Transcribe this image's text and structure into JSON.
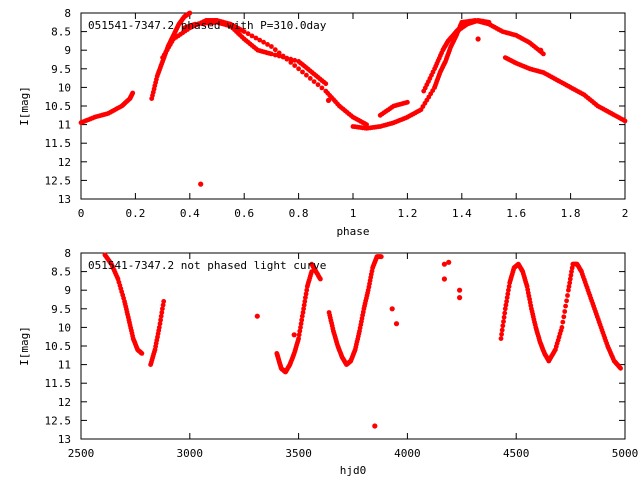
{
  "chart_data": [
    {
      "type": "scatter",
      "title": "051541-7347.2 phased with P=310.0day",
      "xlabel": "phase",
      "ylabel": "I[mag]",
      "xlim": [
        0,
        2
      ],
      "ylim": [
        13,
        8
      ],
      "y_inverted": true,
      "grid": false,
      "color": "#ff0000",
      "x_ticks": [
        "0",
        "0.2",
        "0.4",
        "0.6",
        "0.8",
        "1",
        "1.2",
        "1.4",
        "1.6",
        "1.8",
        "2"
      ],
      "y_ticks": [
        "8",
        "8.5",
        "9",
        "9.5",
        "10",
        "10.5",
        "11",
        "11.5",
        "12",
        "12.5",
        "13"
      ],
      "x_tick_values": [
        0,
        0.2,
        0.4,
        0.6,
        0.8,
        1,
        1.2,
        1.4,
        1.6,
        1.8,
        2
      ],
      "y_tick_values": [
        8,
        8.5,
        9,
        9.5,
        10,
        10.5,
        11,
        11.5,
        12,
        12.5,
        13
      ],
      "curves": [
        {
          "x": [
            0.0,
            0.05,
            0.1,
            0.15,
            0.18,
            0.19
          ],
          "y": [
            10.95,
            10.8,
            10.7,
            10.5,
            10.3,
            10.15
          ]
        },
        {
          "x": [
            0.26,
            0.28,
            0.3,
            0.32,
            0.34,
            0.36,
            0.38,
            0.4
          ],
          "y": [
            10.3,
            9.7,
            9.3,
            8.9,
            8.6,
            8.3,
            8.1,
            8.0
          ]
        },
        {
          "x": [
            0.3,
            0.34,
            0.4,
            0.46,
            0.5,
            0.55,
            0.6,
            0.7,
            0.8,
            0.9,
            0.95,
            1.0,
            1.05
          ],
          "y": [
            9.2,
            8.7,
            8.4,
            8.2,
            8.2,
            8.3,
            8.5,
            8.9,
            9.5,
            10.1,
            10.5,
            10.8,
            11.0
          ]
        },
        {
          "x": [
            0.38,
            0.42,
            0.5,
            0.55,
            0.6,
            0.65,
            0.7,
            0.8,
            0.85,
            0.9
          ],
          "y": [
            8.4,
            8.3,
            8.25,
            8.35,
            8.7,
            9.0,
            9.1,
            9.3,
            9.6,
            9.9
          ]
        },
        {
          "x": [
            1.0,
            1.05,
            1.1,
            1.15,
            1.2,
            1.25,
            1.3
          ],
          "y": [
            11.05,
            11.1,
            11.05,
            10.95,
            10.8,
            10.6,
            10.0
          ]
        },
        {
          "x": [
            1.1,
            1.15,
            1.2
          ],
          "y": [
            10.75,
            10.5,
            10.4
          ]
        },
        {
          "x": [
            1.26,
            1.3,
            1.33,
            1.35,
            1.38,
            1.4
          ],
          "y": [
            10.1,
            9.5,
            9.0,
            8.75,
            8.5,
            8.35
          ]
        },
        {
          "x": [
            1.3,
            1.32,
            1.34,
            1.36,
            1.38,
            1.4,
            1.45,
            1.5,
            1.55,
            1.6,
            1.65,
            1.7
          ],
          "y": [
            10.0,
            9.6,
            9.3,
            8.9,
            8.6,
            8.25,
            8.2,
            8.3,
            8.5,
            8.6,
            8.8,
            9.1
          ]
        },
        {
          "x": [
            1.38,
            1.42,
            1.46,
            1.5
          ],
          "y": [
            8.5,
            8.3,
            8.2,
            8.25
          ]
        },
        {
          "x": [
            1.56,
            1.6,
            1.65,
            1.7,
            1.75,
            1.8,
            1.85,
            1.9,
            1.95,
            2.0
          ],
          "y": [
            9.2,
            9.35,
            9.5,
            9.6,
            9.8,
            10.0,
            10.2,
            10.5,
            10.7,
            10.9
          ]
        }
      ],
      "isolated_points": [
        {
          "x": 0.44,
          "y": 12.6
        },
        {
          "x": 1.46,
          "y": 8.7
        },
        {
          "x": 1.69,
          "y": 9.0
        },
        {
          "x": 0.91,
          "y": 10.35
        }
      ]
    },
    {
      "type": "scatter",
      "title": "051541-7347.2 not phased light curve",
      "xlabel": "hjd0",
      "ylabel": "I[mag]",
      "xlim": [
        2500,
        5000
      ],
      "ylim": [
        13,
        8
      ],
      "y_inverted": true,
      "grid": false,
      "color": "#ff0000",
      "x_ticks": [
        "2500",
        "3000",
        "3500",
        "4000",
        "4500",
        "5000"
      ],
      "y_ticks": [
        "8",
        "8.5",
        "9",
        "9.5",
        "10",
        "10.5",
        "11",
        "11.5",
        "12",
        "12.5",
        "13"
      ],
      "x_tick_values": [
        2500,
        3000,
        3500,
        4000,
        4500,
        5000
      ],
      "y_tick_values": [
        8,
        8.5,
        9,
        9.5,
        10,
        10.5,
        11,
        11.5,
        12,
        12.5,
        13
      ],
      "curves": [
        {
          "x": [
            2610,
            2640,
            2670,
            2700,
            2720,
            2740,
            2760,
            2780
          ],
          "y": [
            8.05,
            8.3,
            8.7,
            9.3,
            9.8,
            10.3,
            10.6,
            10.7
          ]
        },
        {
          "x": [
            2820,
            2840,
            2860,
            2880
          ],
          "y": [
            11.0,
            10.6,
            10.0,
            9.3
          ]
        },
        {
          "x": [
            3400,
            3410,
            3420,
            3440,
            3460,
            3480,
            3500,
            3520,
            3540,
            3560
          ],
          "y": [
            10.7,
            10.9,
            11.1,
            11.2,
            11.0,
            10.7,
            10.3,
            9.6,
            8.9,
            8.5
          ]
        },
        {
          "x": [
            3560,
            3580,
            3600
          ],
          "y": [
            8.3,
            8.5,
            8.7
          ]
        },
        {
          "x": [
            3640,
            3660,
            3680,
            3700,
            3720,
            3740,
            3760,
            3780,
            3800,
            3820,
            3840,
            3860,
            3880
          ],
          "y": [
            9.6,
            10.1,
            10.5,
            10.8,
            11.0,
            10.9,
            10.6,
            10.1,
            9.5,
            9.0,
            8.4,
            8.1,
            8.1
          ]
        },
        {
          "x": [
            4430,
            4450,
            4470,
            4490,
            4510,
            4530,
            4550,
            4570,
            4590,
            4610,
            4630,
            4650
          ],
          "y": [
            10.3,
            9.5,
            8.8,
            8.4,
            8.3,
            8.5,
            8.9,
            9.5,
            10.0,
            10.4,
            10.7,
            10.9
          ]
        },
        {
          "x": [
            4650,
            4680,
            4710,
            4740,
            4760,
            4780,
            4800,
            4830,
            4860,
            4890,
            4920,
            4950,
            4980
          ],
          "y": [
            10.9,
            10.6,
            10.0,
            9.0,
            8.3,
            8.3,
            8.5,
            9.0,
            9.5,
            10.0,
            10.5,
            10.9,
            11.1
          ]
        }
      ],
      "isolated_points": [
        {
          "x": 3310,
          "y": 9.7
        },
        {
          "x": 3480,
          "y": 10.2
        },
        {
          "x": 3850,
          "y": 12.65
        },
        {
          "x": 3930,
          "y": 9.5
        },
        {
          "x": 3950,
          "y": 9.9
        },
        {
          "x": 4170,
          "y": 8.3
        },
        {
          "x": 4190,
          "y": 8.25
        },
        {
          "x": 4170,
          "y": 8.7
        },
        {
          "x": 4240,
          "y": 9.0
        },
        {
          "x": 4240,
          "y": 9.2
        }
      ]
    }
  ]
}
